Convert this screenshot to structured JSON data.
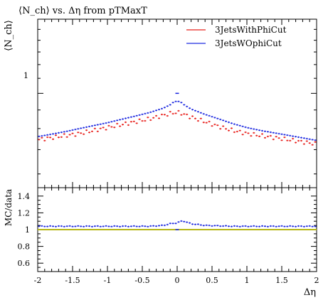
{
  "title": "⟨N_ch⟩ vs. Δη from pTMaxT",
  "chart_data": [
    {
      "type": "line",
      "panel": "main",
      "title": "⟨N_ch⟩ vs. Δη from pTMaxT",
      "ylabel": "⟨N_ch⟩",
      "xlabel": "",
      "yscale": "log",
      "ylim": [
        0.55,
        1.6
      ],
      "xlim": [
        -2,
        2
      ],
      "yticks": [
        1
      ],
      "ytick_labels": [
        "1"
      ],
      "legend_position": "top-right",
      "x": [
        -2.0,
        -1.8,
        -1.6,
        -1.4,
        -1.2,
        -1.0,
        -0.8,
        -0.6,
        -0.4,
        -0.2,
        -0.1,
        -0.04,
        0.04,
        0.1,
        0.2,
        0.4,
        0.6,
        0.8,
        1.0,
        1.2,
        1.4,
        1.6,
        1.8,
        2.0
      ],
      "series": [
        {
          "name": "3JetsWithPhiCut",
          "color": "#e8201c",
          "values": [
            0.745,
            0.755,
            0.765,
            0.775,
            0.79,
            0.805,
            0.82,
            0.835,
            0.85,
            0.87,
            0.88,
            0.885,
            0.885,
            0.875,
            0.86,
            0.835,
            0.81,
            0.79,
            0.775,
            0.765,
            0.755,
            0.745,
            0.735,
            0.725
          ]
        },
        {
          "name": "3JetsWOphiCut",
          "color": "#1f2be0",
          "values": [
            0.76,
            0.772,
            0.785,
            0.8,
            0.815,
            0.83,
            0.848,
            0.866,
            0.885,
            0.91,
            0.93,
            0.95,
            0.95,
            0.93,
            0.905,
            0.875,
            0.85,
            0.825,
            0.805,
            0.79,
            0.778,
            0.766,
            0.754,
            0.742
          ]
        }
      ],
      "outlier": {
        "x": 0.0,
        "y": 1.0,
        "color": "#1f2be0"
      }
    },
    {
      "type": "line",
      "panel": "ratio",
      "ylabel": "MC/data",
      "xlabel": "Δη",
      "ylim": [
        0.5,
        1.5
      ],
      "xlim": [
        -2,
        2
      ],
      "yticks": [
        0.6,
        0.8,
        1.0,
        1.2,
        1.4
      ],
      "ytick_labels": [
        "0.6",
        "0.8",
        "1",
        "1.2",
        "1.4"
      ],
      "xticks": [
        -2,
        -1.5,
        -1,
        -0.5,
        0,
        0.5,
        1,
        1.5,
        2
      ],
      "xtick_labels": [
        "-2",
        "-1.5",
        "-1",
        "-0.5",
        "0",
        "0.5",
        "1",
        "1.5",
        "2"
      ],
      "reference": {
        "value": 1.0,
        "color": "#b5b512"
      },
      "series": [
        {
          "color": "#1f2be0",
          "x": [
            -2.0,
            -1.6,
            -1.2,
            -0.8,
            -0.4,
            -0.2,
            -0.1,
            0.0,
            0.05,
            0.1,
            0.2,
            0.4,
            0.8,
            1.2,
            1.6,
            2.0
          ],
          "values": [
            1.04,
            1.04,
            1.04,
            1.04,
            1.04,
            1.05,
            1.07,
            1.08,
            1.1,
            1.1,
            1.07,
            1.05,
            1.04,
            1.04,
            1.04,
            1.04
          ]
        }
      ]
    }
  ]
}
